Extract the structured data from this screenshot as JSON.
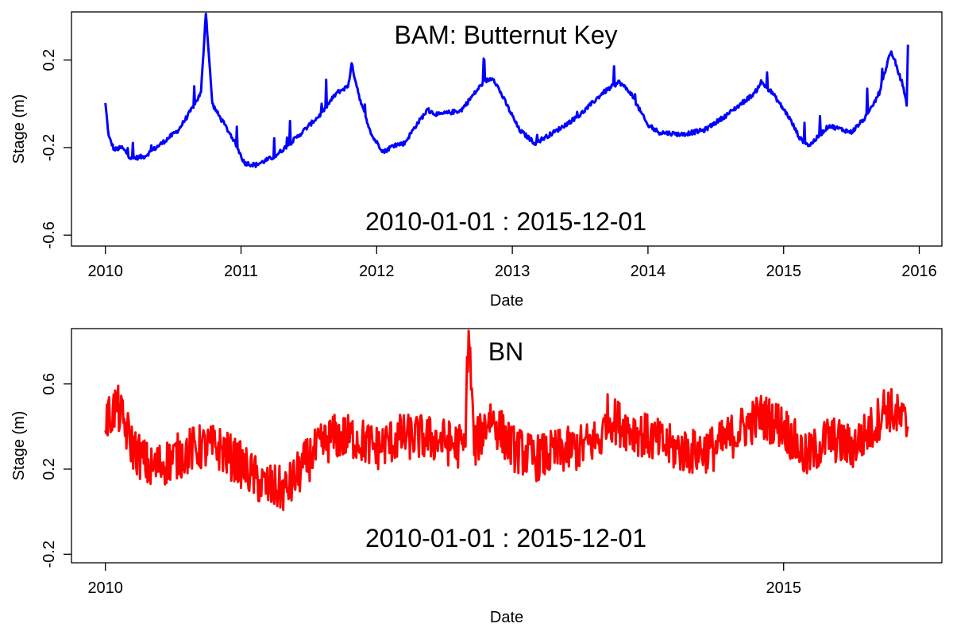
{
  "chart_data": [
    {
      "type": "line",
      "title": "BAM: Butternut Key",
      "annotation": "2010-01-01  :  2015-12-01",
      "xlabel": "Date",
      "ylabel": "Stage (m)",
      "x_ticks": [
        "2010",
        "2011",
        "2012",
        "2013",
        "2014",
        "2015",
        "2016"
      ],
      "y_ticks": [
        "-0.6",
        "-0.2",
        "0.2"
      ],
      "xlim": [
        "2009-10-01",
        "2016-03-01"
      ],
      "ylim": [
        -0.65,
        0.42
      ],
      "grid": false,
      "series": [
        {
          "color": "#0000ff",
          "points": [
            [
              "2010-01-01",
              0.0
            ],
            [
              "2010-01-10",
              -0.15
            ],
            [
              "2010-01-25",
              -0.21
            ],
            [
              "2010-02-15",
              -0.2
            ],
            [
              "2010-03-10",
              -0.25
            ],
            [
              "2010-04-15",
              -0.24
            ],
            [
              "2010-06-01",
              -0.18
            ],
            [
              "2010-07-15",
              -0.12
            ],
            [
              "2010-08-15",
              -0.04
            ],
            [
              "2010-09-15",
              0.05
            ],
            [
              "2010-09-28",
              0.42
            ],
            [
              "2010-10-15",
              0.0
            ],
            [
              "2010-11-01",
              -0.05
            ],
            [
              "2010-12-10",
              -0.16
            ],
            [
              "2011-01-10",
              -0.27
            ],
            [
              "2011-02-10",
              -0.28
            ],
            [
              "2011-04-01",
              -0.24
            ],
            [
              "2011-06-01",
              -0.15
            ],
            [
              "2011-08-01",
              -0.05
            ],
            [
              "2011-09-15",
              0.05
            ],
            [
              "2011-10-15",
              0.08
            ],
            [
              "2011-10-25",
              0.18
            ],
            [
              "2011-11-20",
              0.0
            ],
            [
              "2011-12-20",
              -0.15
            ],
            [
              "2012-01-20",
              -0.22
            ],
            [
              "2012-02-15",
              -0.19
            ],
            [
              "2012-03-15",
              -0.18
            ],
            [
              "2012-04-15",
              -0.1
            ],
            [
              "2012-05-15",
              -0.03
            ],
            [
              "2012-06-15",
              -0.05
            ],
            [
              "2012-08-15",
              -0.03
            ],
            [
              "2012-10-15",
              0.1
            ],
            [
              "2012-11-10",
              0.12
            ],
            [
              "2012-12-15",
              0.0
            ],
            [
              "2013-01-20",
              -0.12
            ],
            [
              "2013-03-01",
              -0.18
            ],
            [
              "2013-05-01",
              -0.12
            ],
            [
              "2013-07-01",
              -0.05
            ],
            [
              "2013-09-01",
              0.05
            ],
            [
              "2013-10-15",
              0.1
            ],
            [
              "2013-11-15",
              0.05
            ],
            [
              "2014-01-01",
              -0.1
            ],
            [
              "2014-02-01",
              -0.13
            ],
            [
              "2014-04-01",
              -0.14
            ],
            [
              "2014-06-01",
              -0.12
            ],
            [
              "2014-08-01",
              -0.05
            ],
            [
              "2014-10-15",
              0.05
            ],
            [
              "2014-11-01",
              0.1
            ],
            [
              "2014-12-01",
              0.05
            ],
            [
              "2015-01-15",
              -0.06
            ],
            [
              "2015-02-15",
              -0.16
            ],
            [
              "2015-03-10",
              -0.19
            ],
            [
              "2015-05-01",
              -0.1
            ],
            [
              "2015-07-01",
              -0.13
            ],
            [
              "2015-08-15",
              -0.05
            ],
            [
              "2015-09-15",
              0.05
            ],
            [
              "2015-10-15",
              0.24
            ],
            [
              "2015-11-15",
              0.1
            ],
            [
              "2015-11-28",
              0.0
            ],
            [
              "2015-12-01",
              0.27
            ]
          ]
        }
      ]
    },
    {
      "type": "line",
      "title": "BN",
      "annotation": "2010-01-01  :  2015-12-01",
      "xlabel": "Date",
      "ylabel": "Stage (m)",
      "x_ticks": [
        "2010",
        "2015"
      ],
      "y_ticks": [
        "-0.2",
        "0.2",
        "0.6"
      ],
      "xlim": [
        "2009-10-01",
        "2016-03-01"
      ],
      "ylim": [
        -0.24,
        0.86
      ],
      "grid": false,
      "series": [
        {
          "color": "#ff0000",
          "points": [
            [
              "2010-01-01",
              0.42
            ],
            [
              "2010-02-01",
              0.5
            ],
            [
              "2010-03-15",
              0.3
            ],
            [
              "2010-05-01",
              0.2
            ],
            [
              "2010-07-01",
              0.25
            ],
            [
              "2010-09-01",
              0.3
            ],
            [
              "2010-11-01",
              0.3
            ],
            [
              "2011-01-01",
              0.22
            ],
            [
              "2011-03-01",
              0.12
            ],
            [
              "2011-05-01",
              0.1
            ],
            [
              "2011-07-01",
              0.25
            ],
            [
              "2011-09-01",
              0.35
            ],
            [
              "2011-11-01",
              0.35
            ],
            [
              "2012-01-01",
              0.3
            ],
            [
              "2012-03-01",
              0.35
            ],
            [
              "2012-05-01",
              0.35
            ],
            [
              "2012-07-01",
              0.33
            ],
            [
              "2012-08-25",
              0.3
            ],
            [
              "2012-09-05",
              0.86
            ],
            [
              "2012-09-20",
              0.3
            ],
            [
              "2012-11-01",
              0.45
            ],
            [
              "2013-01-01",
              0.3
            ],
            [
              "2013-03-01",
              0.25
            ],
            [
              "2013-05-01",
              0.28
            ],
            [
              "2013-07-01",
              0.3
            ],
            [
              "2013-09-01",
              0.35
            ],
            [
              "2013-09-10",
              0.45
            ],
            [
              "2013-11-01",
              0.4
            ],
            [
              "2014-01-01",
              0.35
            ],
            [
              "2014-03-01",
              0.3
            ],
            [
              "2014-05-01",
              0.28
            ],
            [
              "2014-07-01",
              0.3
            ],
            [
              "2014-09-01",
              0.38
            ],
            [
              "2014-11-01",
              0.45
            ],
            [
              "2015-01-01",
              0.4
            ],
            [
              "2015-03-01",
              0.25
            ],
            [
              "2015-05-01",
              0.35
            ],
            [
              "2015-07-01",
              0.3
            ],
            [
              "2015-08-01",
              0.35
            ],
            [
              "2015-09-01",
              0.4
            ],
            [
              "2015-10-01",
              0.5
            ],
            [
              "2015-11-01",
              0.45
            ],
            [
              "2015-12-01",
              0.4
            ]
          ]
        }
      ]
    }
  ]
}
